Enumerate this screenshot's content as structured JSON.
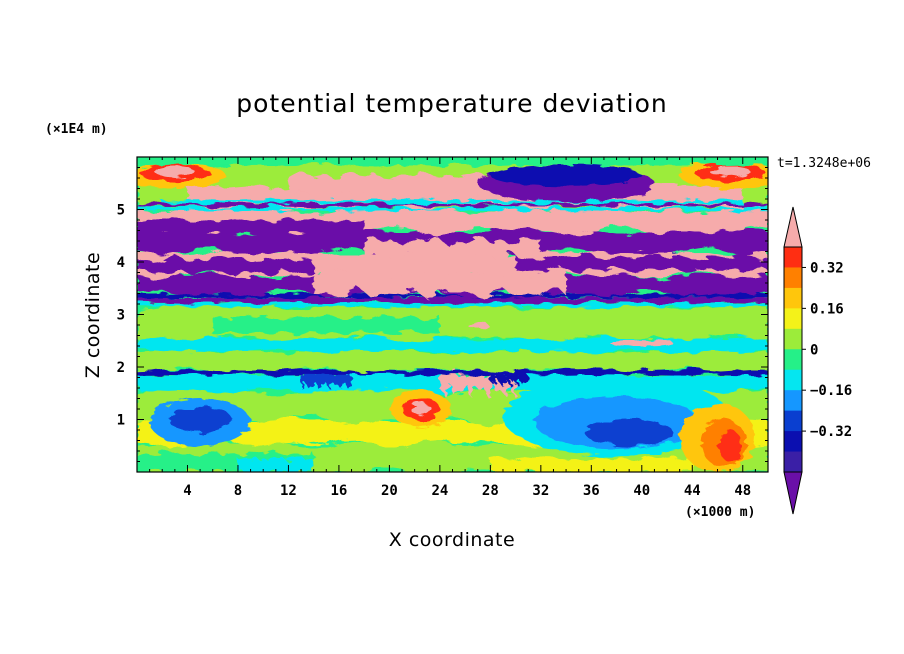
{
  "chart_data": {
    "type": "heatmap",
    "title": "potential temperature deviation",
    "xlabel": "X coordinate",
    "ylabel": "Z coordinate",
    "x_unit": "(×1000 m)",
    "y_unit": "(×1E4 m)",
    "time_label": "t=1.3248e+06",
    "x_range": [
      0,
      50
    ],
    "y_range": [
      0,
      6
    ],
    "x_ticks": [
      4,
      8,
      12,
      16,
      20,
      24,
      28,
      32,
      36,
      40,
      44,
      48
    ],
    "y_ticks": [
      1,
      2,
      3,
      4,
      5
    ],
    "colorbar": {
      "levels": [
        -0.4,
        -0.32,
        -0.24,
        -0.16,
        -0.08,
        0,
        0.08,
        0.16,
        0.24,
        0.32,
        0.4
      ],
      "colors": [
        "#6a0fa8",
        "#3a1fa6",
        "#0b0fb0",
        "#0a3fd0",
        "#1597ff",
        "#05e6f0",
        "#25f088",
        "#9cec3a",
        "#f4f219",
        "#ffc60c",
        "#ff8000",
        "#ff2e12",
        "#f6abab"
      ],
      "tick_labels": [
        "0.32",
        "0.16",
        "0",
        "−0.16",
        "−0.32"
      ],
      "tick_values": [
        0.32,
        0.16,
        0,
        -0.16,
        -0.32
      ],
      "extend": "both"
    },
    "layers": [
      {
        "z": [
          0.0,
          0.7
        ],
        "state": "mixed green/yellow with cyan patches"
      },
      {
        "z": [
          0.7,
          1.85
        ],
        "state": "vortices: negative core near x=38, positive near x=46"
      },
      {
        "z": [
          1.85,
          1.95
        ],
        "state": "thin strong negative band"
      },
      {
        "z": [
          1.95,
          3.15
        ],
        "state": "near zero, green"
      },
      {
        "z": [
          3.15,
          3.4
        ],
        "state": "negative bands"
      },
      {
        "z": [
          3.4,
          5.0
        ],
        "state": "alternating strong positive and strong negative layers"
      },
      {
        "z": [
          5.0,
          5.7
        ],
        "state": "strong positive core, negative at x=28-40"
      },
      {
        "z": [
          5.7,
          6.0
        ],
        "state": "near zero, green"
      }
    ]
  }
}
